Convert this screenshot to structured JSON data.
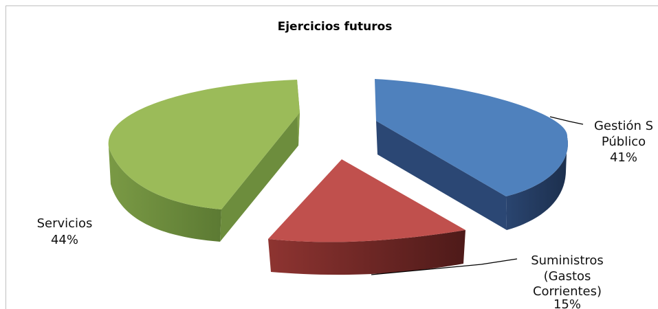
{
  "chart_data": {
    "type": "pie",
    "title": "Ejercicios futuros",
    "slices": [
      {
        "key": "gestion",
        "label_lines": [
          "Gestión S",
          "Público"
        ],
        "percent_label": "41%",
        "value": 41,
        "color": "#4f81bd",
        "side": "#203657"
      },
      {
        "key": "suministros",
        "label_lines": [
          "Suministros",
          "(Gastos",
          "Corrientes)"
        ],
        "percent_label": "15%",
        "value": 15,
        "color": "#c0504d",
        "side": "#6e2523"
      },
      {
        "key": "servicios",
        "label_lines": [
          "Servicios"
        ],
        "percent_label": "44%",
        "value": 44,
        "color": "#9bbb59",
        "side": "#62803a"
      }
    ],
    "style": "3d-exploded",
    "legend": "none"
  }
}
